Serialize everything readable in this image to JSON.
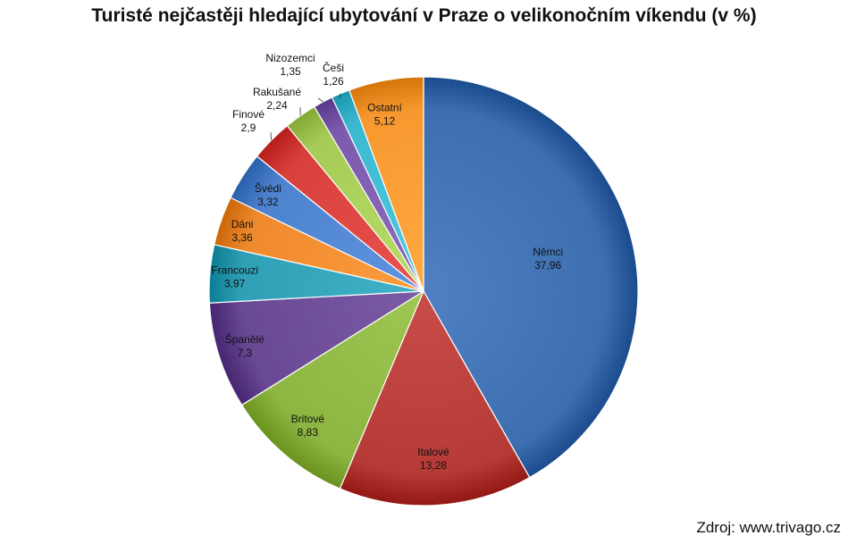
{
  "title": "Turisté nejčastěji hledající ubytování v Praze o velikonočním víkendu (v %)",
  "source": "Zdroj: www.trivago.cz",
  "chart_data": {
    "type": "pie",
    "title": "Turisté nejčastěji hledající ubytování v Praze o velikonočním víkendu (v %)",
    "slices": [
      {
        "label": "Němci",
        "value": 37.96,
        "value_text": "37,96",
        "color": "#3d6eb0"
      },
      {
        "label": "Italové",
        "value": 13.28,
        "value_text": "13,28",
        "color": "#b63a36"
      },
      {
        "label": "Britové",
        "value": 8.83,
        "value_text": "8,83",
        "color": "#8db542"
      },
      {
        "label": "Španělé",
        "value": 7.3,
        "value_text": "7,3",
        "color": "#6a4994"
      },
      {
        "label": "Francouzi",
        "value": 3.97,
        "value_text": "3,97",
        "color": "#2fa0b6"
      },
      {
        "label": "Dáni",
        "value": 3.36,
        "value_text": "3,36",
        "color": "#ee8a2d"
      },
      {
        "label": "Švédi",
        "value": 3.32,
        "value_text": "3,32",
        "color": "#4d82cf"
      },
      {
        "label": "Finové",
        "value": 2.9,
        "value_text": "2,9",
        "color": "#d8403c"
      },
      {
        "label": "Rakušané",
        "value": 2.24,
        "value_text": "2,24",
        "color": "#a6cc57"
      },
      {
        "label": "Nizozemci",
        "value": 1.35,
        "value_text": "1,35",
        "color": "#7c5aad"
      },
      {
        "label": "Češi",
        "value": 1.26,
        "value_text": "1,26",
        "color": "#3cb8d0"
      },
      {
        "label": "Ostatní",
        "value": 5.12,
        "value_text": "5,12",
        "color": "#f7982f"
      }
    ]
  }
}
